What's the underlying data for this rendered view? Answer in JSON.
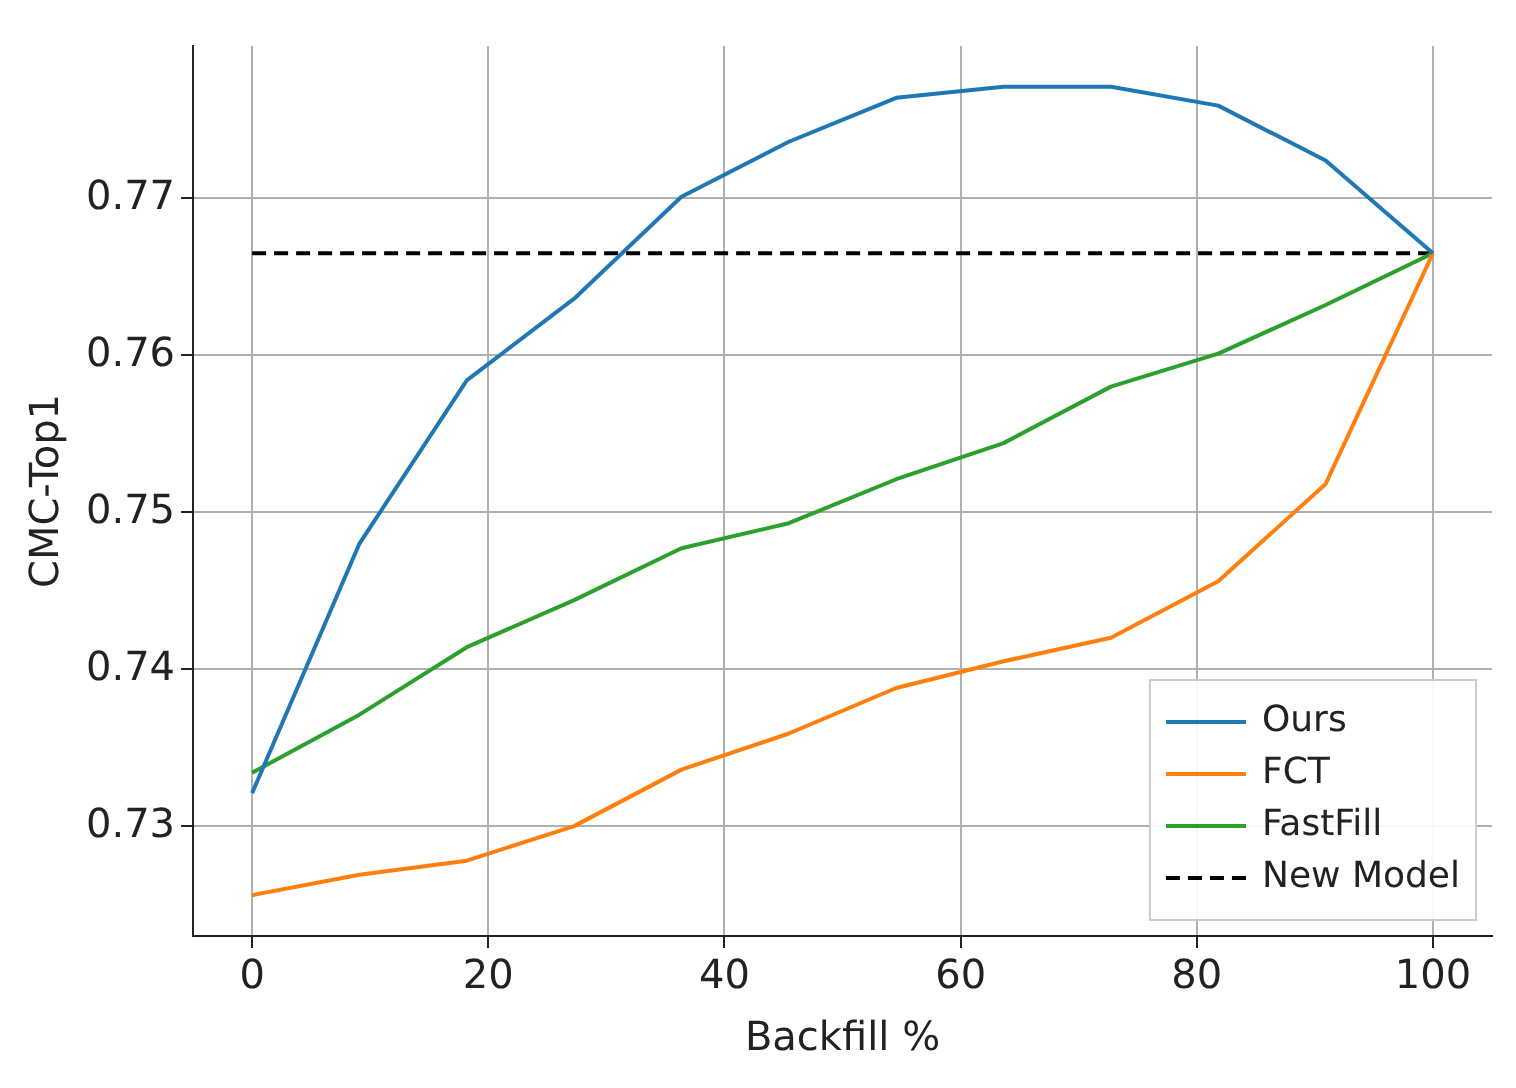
{
  "chart_data": {
    "type": "line",
    "xlabel": "Backfill %",
    "ylabel": "CMC-Top1",
    "x": [
      0,
      9.09,
      18.18,
      27.27,
      36.36,
      45.45,
      54.55,
      63.64,
      72.73,
      81.82,
      90.91,
      100
    ],
    "series": [
      {
        "name": "Ours",
        "color": "#1f77b4",
        "values": [
          0.7321,
          0.748,
          0.7584,
          0.7636,
          0.7701,
          0.7736,
          0.7764,
          0.7771,
          0.7771,
          0.7759,
          0.7724,
          0.7665
        ]
      },
      {
        "name": "FCT",
        "color": "#ff7f0e",
        "values": [
          0.7256,
          0.7269,
          0.7278,
          0.73,
          0.7336,
          0.7359,
          0.7388,
          0.7405,
          0.742,
          0.7456,
          0.7518,
          0.7665
        ]
      },
      {
        "name": "FastFill",
        "color": "#2ca02c",
        "values": [
          0.7334,
          0.7371,
          0.7414,
          0.7444,
          0.7477,
          0.7493,
          0.7521,
          0.7544,
          0.758,
          0.7601,
          0.7632,
          0.7665
        ]
      },
      {
        "name": "New Model",
        "color": "#000000",
        "line_style": "dashed",
        "x": [
          0,
          100
        ],
        "values": [
          0.7665,
          0.7665
        ]
      }
    ],
    "xlim": [
      -5,
      105
    ],
    "xticks": [
      0,
      20,
      40,
      60,
      80,
      100
    ],
    "ylim": [
      0.723,
      0.7797
    ],
    "yticks": [
      0.73,
      0.74,
      0.75,
      0.76,
      0.77
    ],
    "grid": true,
    "legend": "bottom right",
    "marker": "none"
  }
}
